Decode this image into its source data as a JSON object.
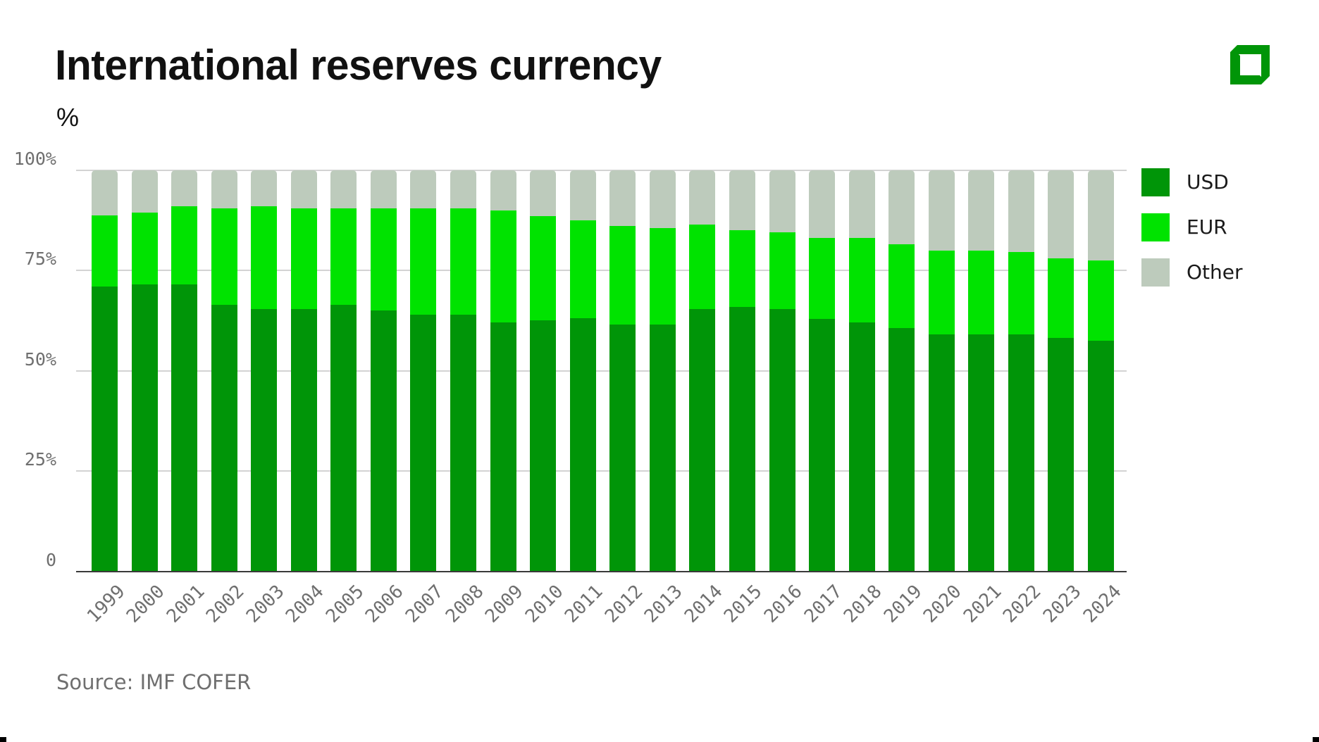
{
  "header": {
    "title": "International reserves currency",
    "subtitle": "%"
  },
  "logo": {
    "icon": "square-logo-icon",
    "color": "#009508"
  },
  "source": "Source: IMF COFER",
  "colors": {
    "USD": "#009508",
    "EUR": "#00e300",
    "Other": "#bdcbbc"
  },
  "legend": [
    {
      "label": "USD",
      "color": "#009508"
    },
    {
      "label": "EUR",
      "color": "#00e300"
    },
    {
      "label": "Other",
      "color": "#bdcbbc"
    }
  ],
  "yaxis": {
    "ticks": [
      {
        "value": 0,
        "label": "0"
      },
      {
        "value": 25,
        "label": "25%"
      },
      {
        "value": 50,
        "label": "50%"
      },
      {
        "value": 75,
        "label": "75%"
      },
      {
        "value": 100,
        "label": "100%"
      }
    ]
  },
  "chart_data": {
    "type": "bar",
    "stacked": true,
    "title": "International reserves currency",
    "subtitle": "%",
    "xlabel": "",
    "ylabel": "%",
    "ylim": [
      0,
      100
    ],
    "grid": true,
    "legend_position": "right",
    "categories": [
      "1999",
      "2000",
      "2001",
      "2002",
      "2003",
      "2004",
      "2005",
      "2006",
      "2007",
      "2008",
      "2009",
      "2010",
      "2011",
      "2012",
      "2013",
      "2014",
      "2015",
      "2016",
      "2017",
      "2018",
      "2019",
      "2020",
      "2021",
      "2022",
      "2023",
      "2024"
    ],
    "series": [
      {
        "name": "USD",
        "color": "#009508",
        "values": [
          71.0,
          71.5,
          71.5,
          66.5,
          65.5,
          65.5,
          66.5,
          65.0,
          64.1,
          64.1,
          62.1,
          62.6,
          63.1,
          61.5,
          61.5,
          65.5,
          66.0,
          65.5,
          63.0,
          62.0,
          60.7,
          59.1,
          59.1,
          59.1,
          58.2,
          57.6
        ]
      },
      {
        "name": "EUR",
        "color": "#00e300",
        "values": [
          17.8,
          18.0,
          19.5,
          24.0,
          25.5,
          25.0,
          24.0,
          25.5,
          26.4,
          26.4,
          27.9,
          26.0,
          24.5,
          24.6,
          24.1,
          21.0,
          19.1,
          19.1,
          20.1,
          21.1,
          20.9,
          20.9,
          20.9,
          20.5,
          19.9,
          20.0
        ]
      },
      {
        "name": "Other",
        "color": "#bdcbbc",
        "values": [
          11.2,
          10.5,
          9.0,
          9.5,
          9.0,
          9.5,
          9.5,
          9.5,
          9.5,
          9.5,
          10.0,
          11.4,
          12.4,
          13.9,
          14.4,
          13.5,
          14.9,
          15.4,
          16.9,
          16.9,
          18.4,
          20.0,
          20.0,
          20.4,
          21.9,
          22.4
        ]
      }
    ],
    "source": "Source: IMF COFER"
  }
}
